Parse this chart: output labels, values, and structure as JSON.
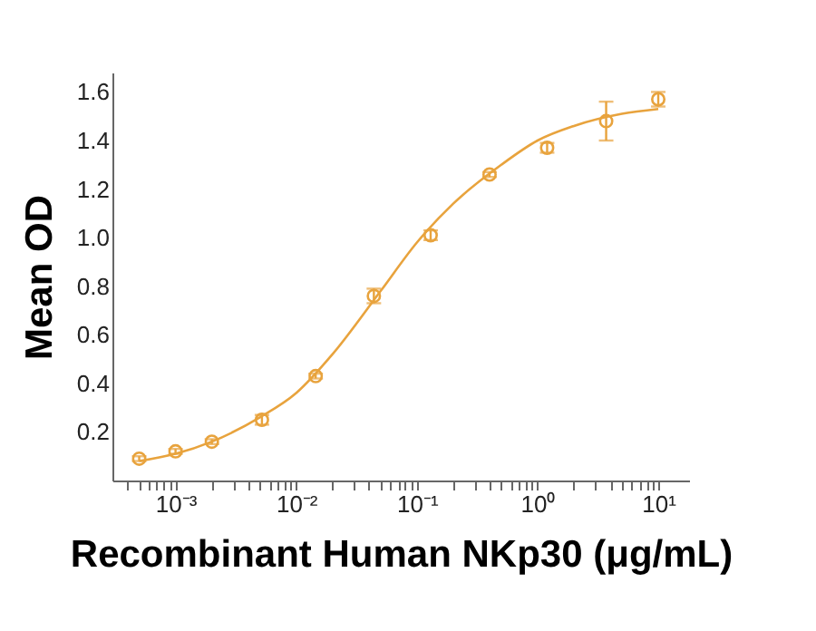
{
  "chart_data": {
    "type": "scatter",
    "xlabel": "Recombinant Human NKp30 (μg/mL)",
    "ylabel": "Mean OD",
    "log": "x",
    "grid": false,
    "legend": false,
    "xlim": [
      0.0003,
      18
    ],
    "ylim": [
      0,
      1.68
    ],
    "xticks": [
      {
        "value": 0.001,
        "label": "10⁻³"
      },
      {
        "value": 0.01,
        "label": "10⁻²"
      },
      {
        "value": 0.1,
        "label": "10⁻¹"
      },
      {
        "value": 1,
        "label": "10⁰"
      },
      {
        "value": 10,
        "label": "10¹"
      },
      {
        "value": 0.0004,
        "label": null
      },
      {
        "value": 0.0005,
        "label": null
      },
      {
        "value": 0.0006,
        "label": null
      },
      {
        "value": 0.0007,
        "label": null
      },
      {
        "value": 0.0008,
        "label": null
      },
      {
        "value": 0.0009,
        "label": null
      },
      {
        "value": 0.002,
        "label": null
      },
      {
        "value": 0.003,
        "label": null
      },
      {
        "value": 0.004,
        "label": null
      },
      {
        "value": 0.005,
        "label": null
      },
      {
        "value": 0.006,
        "label": null
      },
      {
        "value": 0.007,
        "label": null
      },
      {
        "value": 0.008,
        "label": null
      },
      {
        "value": 0.009,
        "label": null
      },
      {
        "value": 0.02,
        "label": null
      },
      {
        "value": 0.03,
        "label": null
      },
      {
        "value": 0.04,
        "label": null
      },
      {
        "value": 0.05,
        "label": null
      },
      {
        "value": 0.06,
        "label": null
      },
      {
        "value": 0.07,
        "label": null
      },
      {
        "value": 0.08,
        "label": null
      },
      {
        "value": 0.09,
        "label": null
      },
      {
        "value": 0.2,
        "label": null
      },
      {
        "value": 0.3,
        "label": null
      },
      {
        "value": 0.4,
        "label": null
      },
      {
        "value": 0.5,
        "label": null
      },
      {
        "value": 0.6,
        "label": null
      },
      {
        "value": 0.7,
        "label": null
      },
      {
        "value": 0.8,
        "label": null
      },
      {
        "value": 0.9,
        "label": null
      },
      {
        "value": 2,
        "label": null
      },
      {
        "value": 3,
        "label": null
      },
      {
        "value": 4,
        "label": null
      },
      {
        "value": 5,
        "label": null
      },
      {
        "value": 6,
        "label": null
      },
      {
        "value": 7,
        "label": null
      },
      {
        "value": 8,
        "label": null
      },
      {
        "value": 9,
        "label": null
      }
    ],
    "yticks": [
      {
        "value": 0.2,
        "label": "0.2"
      },
      {
        "value": 0.4,
        "label": "0.4"
      },
      {
        "value": 0.6,
        "label": "0.6"
      },
      {
        "value": 0.8,
        "label": "0.8"
      },
      {
        "value": 1.0,
        "label": "1.0"
      },
      {
        "value": 1.2,
        "label": "1.2"
      },
      {
        "value": 1.4,
        "label": "1.4"
      },
      {
        "value": 1.6,
        "label": "1.6"
      }
    ],
    "series": [
      {
        "marker": "circle",
        "color": "#e8a33d",
        "x": [
          0.0005,
          0.001,
          0.002,
          0.0052,
          0.0145,
          0.044,
          0.13,
          0.4,
          1.2,
          3.7,
          10
        ],
        "values": [
          0.09,
          0.12,
          0.16,
          0.25,
          0.43,
          0.76,
          1.01,
          1.26,
          1.37,
          1.48,
          1.57
        ],
        "errors": [
          0.01,
          0.01,
          0.01,
          0.02,
          0.01,
          0.03,
          0.02,
          0.01,
          0.02,
          0.08,
          0.03
        ]
      },
      {
        "type": "line",
        "line_style": "solid",
        "color": "#e8a33d",
        "x": [
          0.0005,
          0.001,
          0.002,
          0.005,
          0.01,
          0.02,
          0.05,
          0.1,
          0.2,
          0.5,
          1,
          2,
          5,
          10
        ],
        "values": [
          0.08,
          0.11,
          0.16,
          0.26,
          0.36,
          0.52,
          0.78,
          0.98,
          1.14,
          1.3,
          1.4,
          1.46,
          1.51,
          1.53
        ]
      }
    ]
  }
}
